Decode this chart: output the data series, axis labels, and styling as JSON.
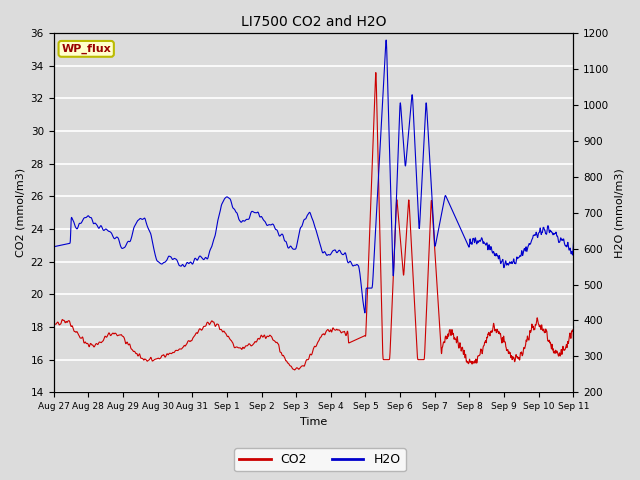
{
  "title": "LI7500 CO2 and H2O",
  "xlabel": "Time",
  "ylabel_left": "CO2 (mmol/m3)",
  "ylabel_right": "H2O (mmol/m3)",
  "ylim_left": [
    14,
    36
  ],
  "ylim_right": [
    200,
    1200
  ],
  "yticks_left": [
    14,
    16,
    18,
    20,
    22,
    24,
    26,
    28,
    30,
    32,
    34,
    36
  ],
  "yticks_right": [
    200,
    300,
    400,
    500,
    600,
    700,
    800,
    900,
    1000,
    1100,
    1200
  ],
  "figsize": [
    6.4,
    4.8
  ],
  "dpi": 100,
  "background_color": "#dcdcdc",
  "co2_color": "#cc0000",
  "h2o_color": "#0000cc",
  "legend_co2": "CO2",
  "legend_h2o": "H2O",
  "annotation_text": "WP_flux",
  "annotation_bg": "#ffffcc",
  "annotation_edge": "#bbbb00",
  "grid_color": "white",
  "xtick_labels": [
    "Aug 27",
    "Aug 28",
    "Aug 29",
    "Aug 30",
    "Aug 31",
    "Sep 1",
    "Sep 2",
    "Sep 3",
    "Sep 4",
    "Sep 5",
    "Sep 6",
    "Sep 7",
    "Sep 8",
    "Sep 9",
    "Sep 10",
    "Sep 11"
  ]
}
